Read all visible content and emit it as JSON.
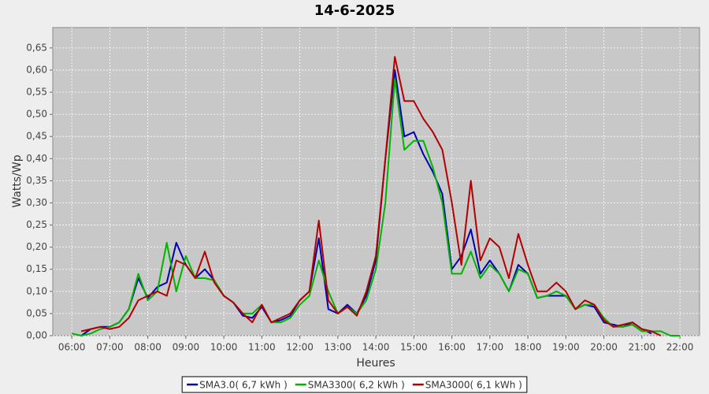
{
  "chart_data": {
    "type": "line",
    "title": "14-6-2025",
    "x_label": "Heures",
    "y_label": "Watts/Wp",
    "x": [
      "06:00",
      "06:15",
      "06:30",
      "06:45",
      "07:00",
      "07:15",
      "07:30",
      "07:45",
      "08:00",
      "08:15",
      "08:30",
      "08:45",
      "09:00",
      "09:15",
      "09:30",
      "09:45",
      "10:00",
      "10:15",
      "10:30",
      "10:45",
      "11:00",
      "11:15",
      "11:30",
      "11:45",
      "12:00",
      "12:15",
      "12:30",
      "12:45",
      "13:00",
      "13:15",
      "13:30",
      "13:45",
      "14:00",
      "14:15",
      "14:30",
      "14:45",
      "15:00",
      "15:15",
      "15:30",
      "15:45",
      "16:00",
      "16:15",
      "16:30",
      "16:45",
      "17:00",
      "17:15",
      "17:30",
      "17:45",
      "18:00",
      "18:15",
      "18:30",
      "18:45",
      "19:00",
      "19:15",
      "19:30",
      "19:45",
      "20:00",
      "20:15",
      "20:30",
      "20:45",
      "21:00",
      "21:15",
      "21:30",
      "21:45",
      "22:00"
    ],
    "series": [
      {
        "name": "SMA3.0( 6,7 kWh )",
        "color": "#0000b4",
        "values": [
          null,
          0,
          0.015,
          0.02,
          0.02,
          0.03,
          0.06,
          0.13,
          0.085,
          0.11,
          0.12,
          0.21,
          0.16,
          0.13,
          0.15,
          0.125,
          0.09,
          0.075,
          0.045,
          0.04,
          0.065,
          0.03,
          0.035,
          0.045,
          0.08,
          0.1,
          0.22,
          0.06,
          0.05,
          0.07,
          0.05,
          0.09,
          0.17,
          0.4,
          0.6,
          0.45,
          0.46,
          0.41,
          0.37,
          0.32,
          0.15,
          0.18,
          0.24,
          0.14,
          0.17,
          0.14,
          0.1,
          0.16,
          0.14,
          0.085,
          0.09,
          0.09,
          0.09,
          0.06,
          0.07,
          0.065,
          0.03,
          0.025,
          0.02,
          0.03,
          0.015,
          0.005,
          null,
          null,
          null
        ]
      },
      {
        "name": "SMA3300( 6,2 kWh )",
        "color": "#00b400",
        "values": [
          0.005,
          0,
          0.005,
          0.015,
          0.02,
          0.03,
          0.06,
          0.14,
          0.08,
          0.1,
          0.21,
          0.1,
          0.18,
          0.13,
          0.13,
          0.125,
          0.09,
          0.075,
          0.05,
          0.05,
          0.07,
          0.03,
          0.03,
          0.04,
          0.07,
          0.09,
          0.17,
          0.1,
          0.05,
          0.065,
          0.05,
          0.08,
          0.15,
          0.3,
          0.58,
          0.42,
          0.44,
          0.44,
          0.38,
          0.3,
          0.14,
          0.14,
          0.19,
          0.13,
          0.16,
          0.14,
          0.1,
          0.15,
          0.14,
          0.085,
          0.09,
          0.1,
          0.09,
          0.06,
          0.07,
          0.07,
          0.04,
          0.02,
          0.02,
          0.025,
          0.01,
          0.01,
          0.01,
          0,
          0
        ]
      },
      {
        "name": "SMA3000( 6,1 kWh )",
        "color": "#b40000",
        "values": [
          null,
          0.01,
          0.015,
          0.02,
          0.015,
          0.02,
          0.04,
          0.08,
          0.09,
          0.1,
          0.09,
          0.17,
          0.16,
          0.13,
          0.19,
          0.12,
          0.09,
          0.075,
          0.05,
          0.03,
          0.07,
          0.03,
          0.04,
          0.05,
          0.08,
          0.1,
          0.26,
          0.08,
          0.05,
          0.065,
          0.045,
          0.1,
          0.18,
          0.4,
          0.63,
          0.53,
          0.53,
          0.49,
          0.46,
          0.42,
          0.3,
          0.16,
          0.35,
          0.17,
          0.22,
          0.2,
          0.13,
          0.23,
          0.16,
          0.1,
          0.1,
          0.12,
          0.1,
          0.06,
          0.08,
          0.07,
          0.035,
          0.02,
          0.025,
          0.03,
          0.015,
          0.01,
          0,
          null,
          null
        ]
      }
    ],
    "xlim": [
      "05:30",
      "22:31"
    ],
    "xticks": [
      "06:00",
      "07:00",
      "08:00",
      "09:00",
      "10:00",
      "11:00",
      "12:00",
      "13:00",
      "14:00",
      "15:00",
      "16:00",
      "17:00",
      "18:00",
      "19:00",
      "20:00",
      "21:00",
      "22:00"
    ],
    "ylim": [
      0,
      0.696
    ],
    "yticks": [
      {
        "value": 0,
        "label": "0,00"
      },
      {
        "value": 0.05,
        "label": "0,05"
      },
      {
        "value": 0.1,
        "label": "0,10"
      },
      {
        "value": 0.15,
        "label": "0,15"
      },
      {
        "value": 0.2,
        "label": "0,20"
      },
      {
        "value": 0.25,
        "label": "0,25"
      },
      {
        "value": 0.3,
        "label": "0,30"
      },
      {
        "value": 0.35,
        "label": "0,35"
      },
      {
        "value": 0.4,
        "label": "0,40"
      },
      {
        "value": 0.45,
        "label": "0,45"
      },
      {
        "value": 0.5,
        "label": "0,50"
      },
      {
        "value": 0.55,
        "label": "0,55"
      },
      {
        "value": 0.6,
        "label": "0,60"
      },
      {
        "value": 0.65,
        "label": "0,65"
      }
    ],
    "grid": true,
    "legend": "bottom"
  }
}
